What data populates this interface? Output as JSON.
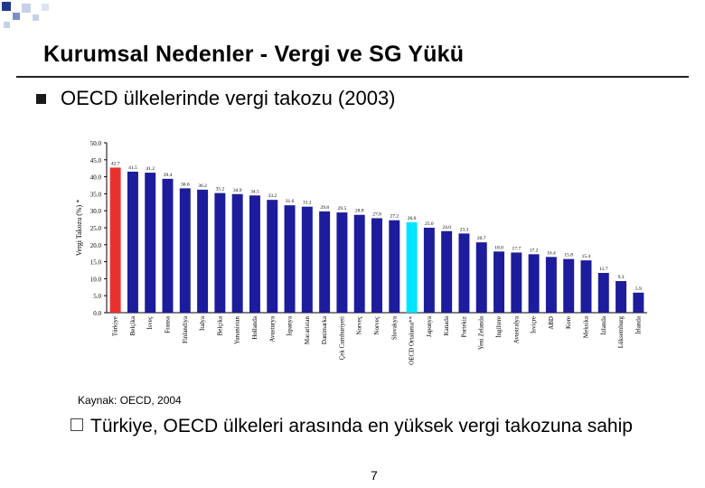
{
  "slide": {
    "title": "Kurumsal Nedenler - Vergi ve SG Yükü",
    "bullet1": "OECD ülkelerinde vergi takozu (2003)",
    "source": "Kaynak: OECD, 2004",
    "bullet2": "Türkiye, OECD ülkeleri arasında en yüksek vergi takozuna sahip",
    "page_number": "7"
  },
  "colors": {
    "bar": "#1c1c9c",
    "highlight_turkey": "#e8312f",
    "highlight_oecd": "#00e5ff",
    "deco": "#1f3a8a"
  },
  "chart_data": {
    "type": "bar",
    "title": "",
    "xlabel": "",
    "ylabel": "Vergi Takozu (%) *",
    "ylim": [
      0,
      50
    ],
    "yticks": [
      0,
      5,
      10,
      15,
      20,
      25,
      30,
      35,
      40,
      45,
      50
    ],
    "categories": [
      "Türkiye",
      "Belçika",
      "İsveç",
      "Fransa",
      "Finlandiya",
      "İtalya",
      "Belçika",
      "Yunanistan",
      "Hollanda",
      "Avusturya",
      "İspanya",
      "Macaristan",
      "Danimarka",
      "Çek Cumhuriyeti",
      "Norveç",
      "Norveç",
      "Slovakya",
      "OECD Ortalama**",
      "Japonya",
      "Kanada",
      "Portekiz",
      "Yeni Zelanda",
      "İngiltere",
      "Avustralya",
      "İsviçre",
      "ABD",
      "Kore",
      "Meksika",
      "İzlanda",
      "Lüksemburg",
      "İrlanda"
    ],
    "values": [
      42.7,
      41.5,
      41.2,
      39.4,
      36.6,
      36.2,
      35.2,
      34.9,
      34.5,
      33.2,
      31.6,
      31.2,
      29.8,
      29.5,
      28.8,
      27.8,
      27.2,
      26.6,
      25.0,
      24.0,
      23.3,
      20.7,
      18.0,
      17.7,
      17.2,
      16.4,
      15.8,
      15.4,
      11.7,
      9.3,
      5.9
    ]
  }
}
